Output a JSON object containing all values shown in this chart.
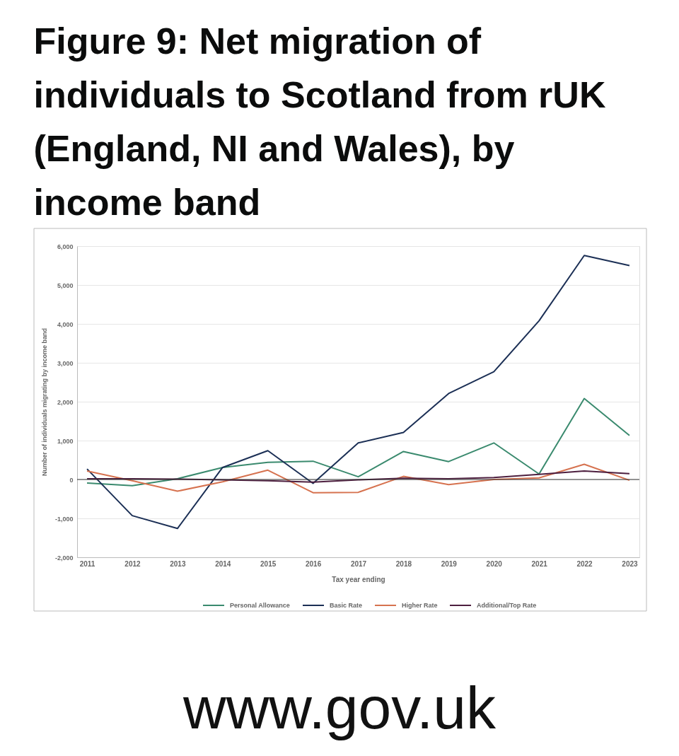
{
  "chart_data": {
    "type": "line",
    "title": "Figure 9: Net migration of individuals to Scotland from rUK (England, NI and Wales), by income band",
    "xlabel": "Tax year ending",
    "ylabel": "Number of individuals migrating by income band",
    "categories": [
      "2011",
      "2012",
      "2013",
      "2014",
      "2015",
      "2016",
      "2017",
      "2018",
      "2019",
      "2020",
      "2021",
      "2022",
      "2023"
    ],
    "series": [
      {
        "name": "Personal Allowance",
        "color": "#3a8a6e",
        "values": [
          -90,
          -160,
          20,
          310,
          440,
          470,
          70,
          720,
          460,
          940,
          140,
          2080,
          1130
        ]
      },
      {
        "name": "Basic Rate",
        "color": "#1b2f55",
        "values": [
          270,
          -930,
          -1260,
          310,
          740,
          -100,
          940,
          1210,
          2210,
          2770,
          4080,
          5760,
          5500
        ]
      },
      {
        "name": "Higher Rate",
        "color": "#d6724f",
        "values": [
          220,
          -30,
          -300,
          -60,
          240,
          -340,
          -330,
          80,
          -130,
          0,
          40,
          390,
          -20
        ]
      },
      {
        "name": "Additional/Top Rate",
        "color": "#4d1f3f",
        "values": [
          20,
          20,
          10,
          -10,
          -30,
          -70,
          -10,
          30,
          20,
          50,
          130,
          220,
          150
        ]
      }
    ],
    "ylim": [
      -2000,
      6000
    ],
    "yticks": [
      {
        "value": -2000,
        "label": "-2,000"
      },
      {
        "value": -1000,
        "label": "-1,000"
      },
      0,
      {
        "value": 1000,
        "label": "1,000"
      },
      {
        "value": 2000,
        "label": "2,000"
      },
      {
        "value": 3000,
        "label": "3,000"
      },
      {
        "value": 4000,
        "label": "4,000"
      },
      {
        "value": 5000,
        "label": "5,000"
      },
      {
        "value": 6000,
        "label": "6,000"
      }
    ],
    "ref_lines": [
      {
        "axis": "y",
        "value": 0,
        "color": "#333333"
      }
    ],
    "grid": "y",
    "legend": "bottom",
    "marker": "none",
    "line_style": "solid",
    "annotations": [
      "www.gov.uk"
    ]
  }
}
